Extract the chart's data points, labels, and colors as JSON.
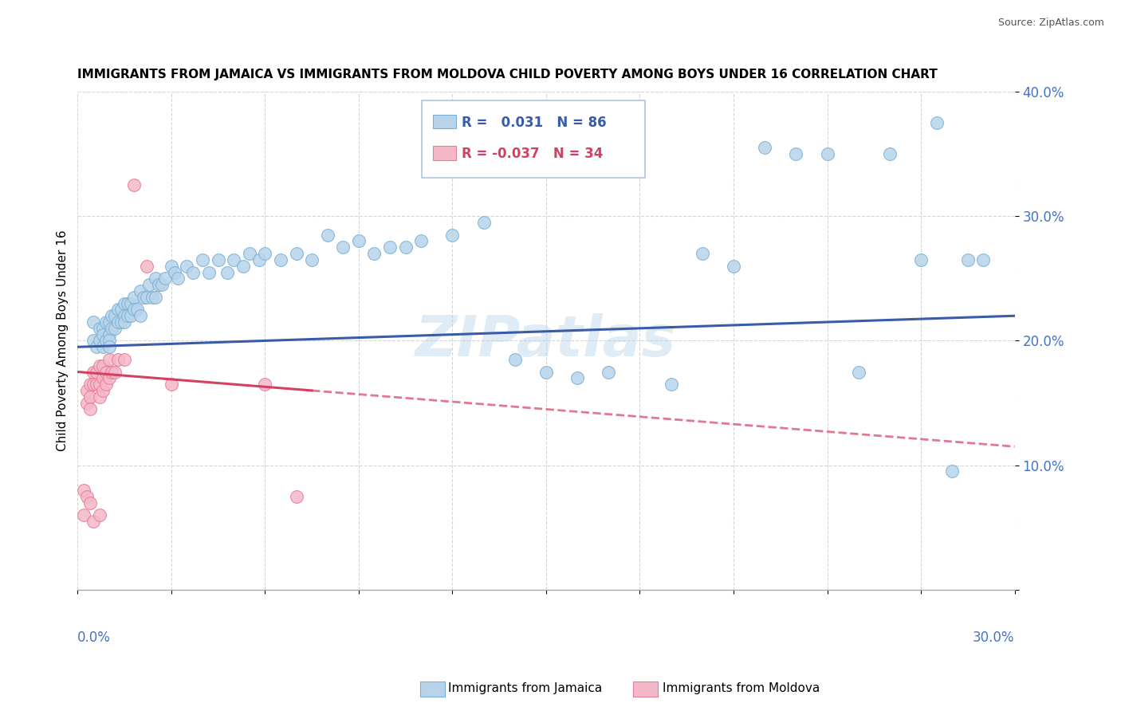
{
  "title": "IMMIGRANTS FROM JAMAICA VS IMMIGRANTS FROM MOLDOVA CHILD POVERTY AMONG BOYS UNDER 16 CORRELATION CHART",
  "source": "Source: ZipAtlas.com",
  "ylabel": "Child Poverty Among Boys Under 16",
  "xlim": [
    0.0,
    0.3
  ],
  "ylim": [
    0.0,
    0.4
  ],
  "jamaica_color": "#b8d4ea",
  "jamaica_edge": "#7aafd4",
  "moldova_color": "#f4b8c8",
  "moldova_edge": "#e87a9a",
  "trend_jamaica_color": "#3a5ca8",
  "trend_moldova_color": "#d44060",
  "watermark": "ZIPatlas",
  "legend_R_jamaica": "0.031",
  "legend_N_jamaica": "86",
  "legend_R_moldova": "-0.037",
  "legend_N_moldova": "34",
  "legend_jamaica_label": "Immigrants from Jamaica",
  "legend_moldova_label": "Immigrants from Moldova",
  "jamaica_x": [
    0.005,
    0.005,
    0.006,
    0.007,
    0.007,
    0.008,
    0.008,
    0.008,
    0.009,
    0.009,
    0.01,
    0.01,
    0.01,
    0.01,
    0.011,
    0.011,
    0.012,
    0.012,
    0.013,
    0.013,
    0.014,
    0.014,
    0.015,
    0.015,
    0.015,
    0.016,
    0.016,
    0.017,
    0.017,
    0.018,
    0.018,
    0.019,
    0.02,
    0.02,
    0.021,
    0.022,
    0.023,
    0.024,
    0.025,
    0.025,
    0.026,
    0.027,
    0.028,
    0.03,
    0.031,
    0.032,
    0.035,
    0.037,
    0.04,
    0.042,
    0.045,
    0.048,
    0.05,
    0.053,
    0.055,
    0.058,
    0.06,
    0.065,
    0.07,
    0.075,
    0.08,
    0.085,
    0.09,
    0.095,
    0.1,
    0.105,
    0.11,
    0.12,
    0.13,
    0.14,
    0.15,
    0.16,
    0.17,
    0.19,
    0.2,
    0.21,
    0.22,
    0.23,
    0.24,
    0.25,
    0.26,
    0.27,
    0.275,
    0.28,
    0.285,
    0.29
  ],
  "jamaica_y": [
    0.2,
    0.215,
    0.195,
    0.21,
    0.2,
    0.21,
    0.195,
    0.205,
    0.2,
    0.215,
    0.205,
    0.215,
    0.2,
    0.195,
    0.22,
    0.21,
    0.22,
    0.21,
    0.225,
    0.215,
    0.225,
    0.215,
    0.23,
    0.22,
    0.215,
    0.23,
    0.22,
    0.23,
    0.22,
    0.235,
    0.225,
    0.225,
    0.24,
    0.22,
    0.235,
    0.235,
    0.245,
    0.235,
    0.25,
    0.235,
    0.245,
    0.245,
    0.25,
    0.26,
    0.255,
    0.25,
    0.26,
    0.255,
    0.265,
    0.255,
    0.265,
    0.255,
    0.265,
    0.26,
    0.27,
    0.265,
    0.27,
    0.265,
    0.27,
    0.265,
    0.285,
    0.275,
    0.28,
    0.27,
    0.275,
    0.275,
    0.28,
    0.285,
    0.295,
    0.185,
    0.175,
    0.17,
    0.175,
    0.165,
    0.27,
    0.26,
    0.355,
    0.35,
    0.35,
    0.175,
    0.35,
    0.265,
    0.375,
    0.095,
    0.265,
    0.265
  ],
  "moldova_x": [
    0.002,
    0.002,
    0.003,
    0.003,
    0.003,
    0.004,
    0.004,
    0.004,
    0.004,
    0.005,
    0.005,
    0.005,
    0.006,
    0.006,
    0.007,
    0.007,
    0.007,
    0.007,
    0.008,
    0.008,
    0.008,
    0.009,
    0.009,
    0.01,
    0.01,
    0.011,
    0.012,
    0.013,
    0.015,
    0.018,
    0.022,
    0.03,
    0.06,
    0.07
  ],
  "moldova_y": [
    0.06,
    0.08,
    0.16,
    0.15,
    0.075,
    0.165,
    0.155,
    0.145,
    0.07,
    0.175,
    0.165,
    0.055,
    0.175,
    0.165,
    0.18,
    0.165,
    0.155,
    0.06,
    0.18,
    0.17,
    0.16,
    0.175,
    0.165,
    0.185,
    0.17,
    0.175,
    0.175,
    0.185,
    0.185,
    0.325,
    0.26,
    0.165,
    0.165,
    0.075
  ],
  "trend_jamaica_x0": 0.0,
  "trend_jamaica_x1": 0.3,
  "trend_jamaica_y0": 0.195,
  "trend_jamaica_y1": 0.22,
  "trend_moldova_x0": 0.0,
  "trend_moldova_x1": 0.3,
  "trend_moldova_y0": 0.175,
  "trend_moldova_y1": 0.115
}
